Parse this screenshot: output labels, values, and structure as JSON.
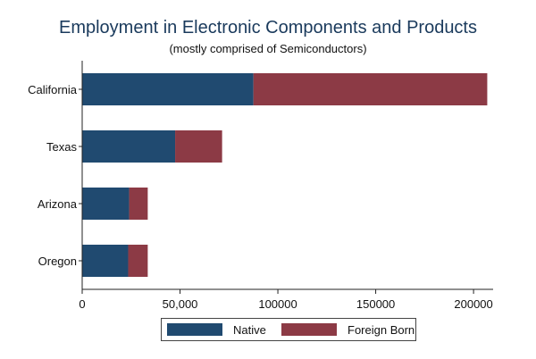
{
  "chart_data": {
    "type": "bar",
    "orientation": "horizontal",
    "stacked": true,
    "title": "Employment in Electronic Components and Products",
    "subtitle": "(mostly comprised of Semiconductors)",
    "categories": [
      "California",
      "Texas",
      "Arizona",
      "Oregon"
    ],
    "series": [
      {
        "name": "Native",
        "color": "#204a70",
        "values": [
          87500,
          47500,
          24000,
          23500
        ]
      },
      {
        "name": "Foreign Born",
        "color": "#8c3a45",
        "values": [
          119500,
          24000,
          9500,
          10000
        ]
      }
    ],
    "xlim": [
      0,
      210000
    ],
    "xticks": [
      0,
      50000,
      100000,
      150000,
      200000
    ],
    "xtick_labels": [
      "0",
      "50,000",
      "100000",
      "150000",
      "200000"
    ],
    "legend_position": "bottom",
    "grid": false
  }
}
